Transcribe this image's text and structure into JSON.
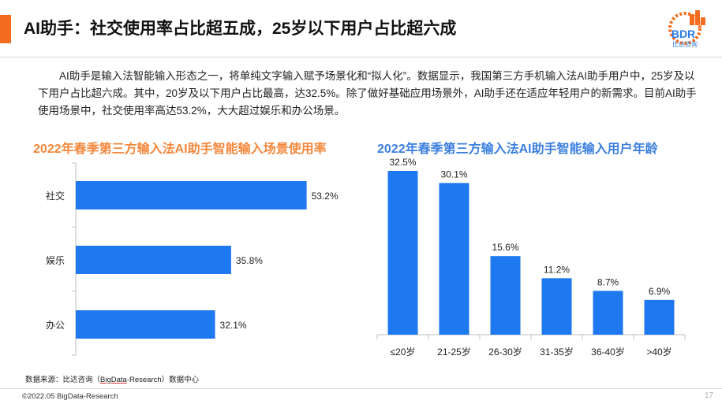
{
  "page_title": "AI助手：社交使用率占比超五成，25岁以下用户占比超六成",
  "logo": {
    "text": "BDR",
    "sub": "比达咨询",
    "colors": [
      "#2a7ae2",
      "#f46c1e"
    ]
  },
  "intro": "AI助手是输入法智能输入形态之一，将单纯文字输入赋予场景化和“拟人化”。数据显示，我国第三方手机输入法AI助手用户中，25岁及以下用户占比超六成。其中，20岁及以下用户占比最高，达32.5%。除了做好基础应用场景外，AI助手还在适应年轻用户的新需求。目前AI助手使用场景中，社交使用率高达53.2%，大大超过娱乐和办公场景。",
  "chart_data": [
    {
      "type": "bar",
      "orientation": "horizontal",
      "title": "2022年春季第三方输入法AI助手智能输入场景使用率",
      "categories": [
        "社交",
        "娱乐",
        "办公"
      ],
      "values": [
        53.2,
        35.8,
        32.1
      ],
      "value_labels": [
        "53.2%",
        "35.8%",
        "32.1%"
      ],
      "unit": "%",
      "xlim": [
        0,
        60
      ],
      "bar_color": "#1e78f0",
      "grid": false
    },
    {
      "type": "bar",
      "orientation": "vertical",
      "title": "2022年春季第三方输入法AI助手智能输入用户年龄",
      "categories": [
        "≤20岁",
        "21-25岁",
        "26-30岁",
        "31-35岁",
        "36-40岁",
        ">40岁"
      ],
      "values": [
        32.5,
        30.1,
        15.6,
        11.2,
        8.7,
        6.9
      ],
      "value_labels": [
        "32.5%",
        "30.1%",
        "15.6%",
        "11.2%",
        "8.7%",
        "6.9%"
      ],
      "unit": "%",
      "ylim": [
        0,
        35
      ],
      "bar_color": "#1e78f0",
      "grid": false
    }
  ],
  "source": {
    "prefix": "数据来源：比达咨询（",
    "underlined": "BigData",
    "suffix": "-Research）数据中心"
  },
  "copyright": "©2022.05 BigData-Research",
  "page_number": "17"
}
